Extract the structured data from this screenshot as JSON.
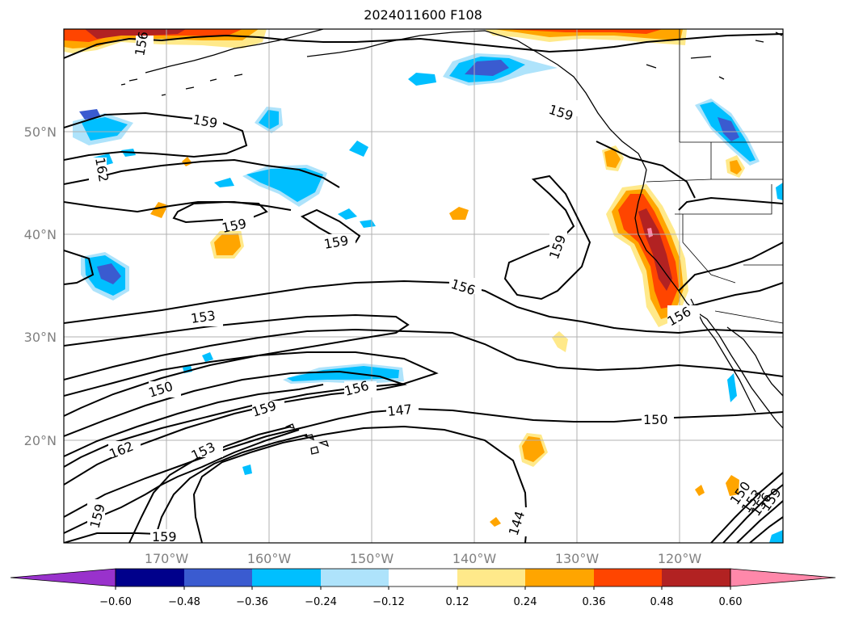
{
  "title": "2024011600 F108",
  "map": {
    "lon_labels": [
      "170°W",
      "160°W",
      "150°W",
      "140°W",
      "130°W",
      "120°W"
    ],
    "lat_labels": [
      "50°N",
      "40°N",
      "30°N",
      "20°N"
    ],
    "contour_labels": [
      {
        "text": "156"
      },
      {
        "text": "159"
      },
      {
        "text": "159"
      },
      {
        "text": "162"
      },
      {
        "text": "159"
      },
      {
        "text": "159"
      },
      {
        "text": "159"
      },
      {
        "text": "156"
      },
      {
        "text": "156"
      },
      {
        "text": "153"
      },
      {
        "text": "150"
      },
      {
        "text": "156"
      },
      {
        "text": "159"
      },
      {
        "text": "147"
      },
      {
        "text": "150"
      },
      {
        "text": "162"
      },
      {
        "text": "153"
      },
      {
        "text": "144"
      },
      {
        "text": "159"
      },
      {
        "text": "159"
      },
      {
        "text": "150"
      },
      {
        "text": "153"
      },
      {
        "text": "156"
      },
      {
        "text": "159"
      }
    ]
  },
  "colorbar": {
    "ticks": [
      "−0.60",
      "−0.48",
      "−0.36",
      "−0.24",
      "−0.12",
      "0.12",
      "0.24",
      "0.36",
      "0.48",
      "0.60"
    ],
    "colors": [
      "#9932cc",
      "#00008b",
      "#3a5bd0",
      "#00bfff",
      "#aee3fb",
      "#ffffff",
      "#ffe98a",
      "#ffa500",
      "#ff4500",
      "#b22222",
      "#ff88aa"
    ]
  }
}
